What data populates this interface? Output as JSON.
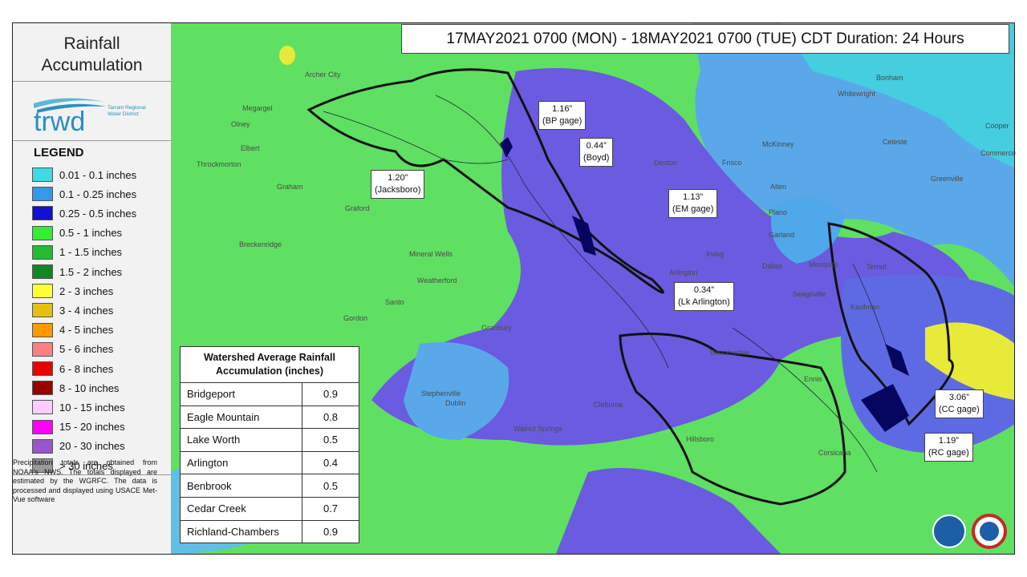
{
  "sidebar": {
    "title": "Rainfall Accumulation",
    "logo": "trwd",
    "logo_caption": "Tarrant Regional Water District",
    "legend_title": "LEGEND",
    "legend": [
      {
        "label": "0.01 - 0.1 inches",
        "color": "#3fd9e3"
      },
      {
        "label": "0.1 - 0.25 inches",
        "color": "#3399e8"
      },
      {
        "label": "0.25 - 0.5 inches",
        "color": "#1010d0"
      },
      {
        "label": "0.5 - 1 inches",
        "color": "#33ee33"
      },
      {
        "label": "1 - 1.5 inches",
        "color": "#22bb33"
      },
      {
        "label": "1.5 - 2 inches",
        "color": "#118822"
      },
      {
        "label": "2 - 3 inches",
        "color": "#ffff33"
      },
      {
        "label": "3 - 4 inches",
        "color": "#e6c010"
      },
      {
        "label": "4 - 5 inches",
        "color": "#ff9900"
      },
      {
        "label": "5 - 6 inches",
        "color": "#ff8080"
      },
      {
        "label": "6 - 8 inches",
        "color": "#ee0000"
      },
      {
        "label": "8 - 10 inches",
        "color": "#990000"
      },
      {
        "label": "10 - 15 inches",
        "color": "#ffccff"
      },
      {
        "label": "15 - 20 inches",
        "color": "#ff00ff"
      },
      {
        "label": "20 - 30 inches",
        "color": "#9955cc"
      },
      {
        "label": "> 30 inches",
        "color": "#999999"
      }
    ],
    "note": "Precipitation totals are obtained from NOAA's NWS. The totals displayed are estimated by the WGRFC. The data is processed and displayed using USACE Met-Vue software"
  },
  "banner": "17MAY2021 0700 (MON) - 18MAY2021 0700 (TUE) CDT Duration: 24 Hours",
  "table": {
    "title": "Watershed Average Rainfall Accumulation (inches)",
    "rows": [
      [
        "Bridgeport",
        "0.9"
      ],
      [
        "Eagle Mountain",
        "0.8"
      ],
      [
        "Lake Worth",
        "0.5"
      ],
      [
        "Arlington",
        "0.4"
      ],
      [
        "Benbrook",
        "0.5"
      ],
      [
        "Cedar Creek",
        "0.7"
      ],
      [
        "Richland-Chambers",
        "0.9"
      ]
    ]
  },
  "gages": [
    {
      "value": "1.16”",
      "name": "(BP gage)"
    },
    {
      "value": "0.44”",
      "name": "(Boyd)"
    },
    {
      "value": "1.20”",
      "name": "(Jacksboro)"
    },
    {
      "value": "1.13”",
      "name": "(EM gage)"
    },
    {
      "value": "0.34”",
      "name": "(Lk Arlington)"
    },
    {
      "value": "3.06”",
      "name": "(CC gage)"
    },
    {
      "value": "1.19”",
      "name": "(RC gage)"
    }
  ],
  "places": [
    "Bonham",
    "Whitewright",
    "Cooper",
    "Commerce",
    "Greenville",
    "Celeste",
    "Denton",
    "Frisco",
    "McKinney",
    "Allen",
    "Plano",
    "Garland",
    "Dallas",
    "Irving",
    "Arlington",
    "Mesquite",
    "Seagoville",
    "Terrell",
    "Kaufman",
    "Graham",
    "Archer City",
    "Megargel",
    "Olney",
    "Throckmorton",
    "Breckenridge",
    "Mineral Wells",
    "Granbury",
    "Stephenville",
    "Cleburne",
    "Waxahachie",
    "Ennis",
    "Corsicana",
    "Hillsboro",
    "Walnut Springs",
    "Dublin",
    "Santo",
    "Gordon",
    "Elbert",
    "Graford",
    "Weatherford"
  ]
}
